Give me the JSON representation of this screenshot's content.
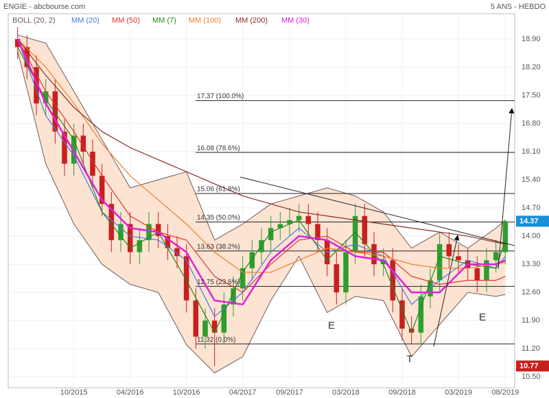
{
  "chart_data": {
    "type": "candlestick",
    "title": "ENGIE - abcbourse.com",
    "subtitle": "5 ANS - HEBDO",
    "xlim": [
      "2015-03",
      "2019-09"
    ],
    "xticks": [
      {
        "value": "2015-10",
        "label": "10/2015"
      },
      {
        "value": "2016-04",
        "label": "04/2016"
      },
      {
        "value": "2016-10",
        "label": "10/2016"
      },
      {
        "value": "2017-04",
        "label": "04/2017"
      },
      {
        "value": "2017-09",
        "label": "09/2017"
      },
      {
        "value": "2018-03",
        "label": "03/2018"
      },
      {
        "value": "2018-09",
        "label": "09/2018"
      },
      {
        "value": "2019-03",
        "label": "03/2019"
      },
      {
        "value": "2019-08",
        "label": "08/2019"
      }
    ],
    "ylim": [
      10.23,
      19.53
    ],
    "yticks": [
      {
        "value": 10.5,
        "label": "10.50"
      },
      {
        "value": 11.2,
        "label": "11.20"
      },
      {
        "value": 11.9,
        "label": "11.90"
      },
      {
        "value": 12.6,
        "label": "12.60"
      },
      {
        "value": 13.3,
        "label": "13.30"
      },
      {
        "value": 14.0,
        "label": "14.00"
      },
      {
        "value": 14.7,
        "label": "14.70"
      },
      {
        "value": 15.4,
        "label": "15.40"
      },
      {
        "value": 16.1,
        "label": "16.10"
      },
      {
        "value": 16.8,
        "label": "16.80"
      },
      {
        "value": 17.5,
        "label": "17.50"
      },
      {
        "value": 18.2,
        "label": "18.20"
      },
      {
        "value": 18.9,
        "label": "18.90"
      }
    ],
    "grid": true,
    "up_color": "#2e9e2e",
    "down_color": "#c8201e",
    "candles": {
      "x": [
        "2015-04",
        "2015-05",
        "2015-06",
        "2015-07",
        "2015-08",
        "2015-09",
        "2015-10",
        "2015-11",
        "2015-12",
        "2016-01",
        "2016-02",
        "2016-03",
        "2016-04",
        "2016-05",
        "2016-06",
        "2016-07",
        "2016-08",
        "2016-09",
        "2016-10",
        "2016-11",
        "2016-12",
        "2017-01",
        "2017-02",
        "2017-03",
        "2017-04",
        "2017-05",
        "2017-06",
        "2017-07",
        "2017-08",
        "2017-09",
        "2017-10",
        "2017-11",
        "2017-12",
        "2018-01",
        "2018-02",
        "2018-03",
        "2018-04",
        "2018-05",
        "2018-06",
        "2018-07",
        "2018-08",
        "2018-09",
        "2018-10",
        "2018-11",
        "2018-12",
        "2019-01",
        "2019-02",
        "2019-03",
        "2019-04",
        "2019-05",
        "2019-06",
        "2019-07",
        "2019-08"
      ],
      "open": [
        18.9,
        18.7,
        18.2,
        17.3,
        17.6,
        16.6,
        15.8,
        16.5,
        16.1,
        15.5,
        14.8,
        13.9,
        14.3,
        13.6,
        13.9,
        14.3,
        14.0,
        13.7,
        13.5,
        12.4,
        11.5,
        11.9,
        11.6,
        12.3,
        12.7,
        13.2,
        13.6,
        13.9,
        14.2,
        14.3,
        14.4,
        14.5,
        14.3,
        13.9,
        13.3,
        12.6,
        13.6,
        14.5,
        13.8,
        13.3,
        13.4,
        12.4,
        11.7,
        11.6,
        12.5,
        12.9,
        13.8,
        13.5,
        13.4,
        13.2,
        12.9,
        13.4,
        13.6
      ],
      "high": [
        19.2,
        19.0,
        18.5,
        17.9,
        17.9,
        16.9,
        16.8,
        16.8,
        16.4,
        15.8,
        15.1,
        14.6,
        14.6,
        14.2,
        14.6,
        14.6,
        14.3,
        14.0,
        13.8,
        12.7,
        12.2,
        12.2,
        12.6,
        13.0,
        13.5,
        13.9,
        14.2,
        14.5,
        14.6,
        14.7,
        14.8,
        14.8,
        14.6,
        14.2,
        13.6,
        13.9,
        14.8,
        14.8,
        14.1,
        13.7,
        13.7,
        12.7,
        12.0,
        12.8,
        13.2,
        14.1,
        14.1,
        13.8,
        13.7,
        13.5,
        13.7,
        13.9,
        14.4
      ],
      "low": [
        18.4,
        17.9,
        17.0,
        17.0,
        16.3,
        15.5,
        15.5,
        15.8,
        15.2,
        14.5,
        13.6,
        13.6,
        13.3,
        13.3,
        13.6,
        13.7,
        13.4,
        13.2,
        12.1,
        11.2,
        11.2,
        10.77,
        11.3,
        12.0,
        12.4,
        12.9,
        13.3,
        13.6,
        13.9,
        14.0,
        14.1,
        14.0,
        13.6,
        13.0,
        12.3,
        12.3,
        13.3,
        13.5,
        13.0,
        13.0,
        12.1,
        11.4,
        11.3,
        11.3,
        12.2,
        12.6,
        13.2,
        13.1,
        12.9,
        12.6,
        12.6,
        13.1,
        13.3
      ],
      "close": [
        18.7,
        18.2,
        17.3,
        17.6,
        16.6,
        15.8,
        16.5,
        16.1,
        15.5,
        14.8,
        13.9,
        14.3,
        13.6,
        13.9,
        14.3,
        14.0,
        13.7,
        13.5,
        12.4,
        11.5,
        11.9,
        11.6,
        12.3,
        12.7,
        13.2,
        13.6,
        13.9,
        14.2,
        14.3,
        14.4,
        14.5,
        14.3,
        13.9,
        13.3,
        12.6,
        13.6,
        14.5,
        13.8,
        13.3,
        13.4,
        12.4,
        11.7,
        11.6,
        12.5,
        12.9,
        13.8,
        13.5,
        13.4,
        13.2,
        12.9,
        13.4,
        13.6,
        14.37
      ]
    },
    "overlays": {
      "x": [
        "2015-04",
        "2015-07",
        "2015-10",
        "2016-01",
        "2016-04",
        "2016-07",
        "2016-10",
        "2017-01",
        "2017-04",
        "2017-07",
        "2017-10",
        "2018-01",
        "2018-04",
        "2018-07",
        "2018-10",
        "2019-01",
        "2019-04",
        "2019-07",
        "2019-08"
      ],
      "bands": {
        "name": "BOLL (20, 2)",
        "color": "#6e5a5a",
        "fill": "#fde3d2",
        "upper": [
          19.0,
          18.8,
          17.6,
          16.4,
          15.2,
          15.4,
          15.6,
          13.9,
          14.3,
          14.8,
          15.0,
          15.2,
          15.0,
          14.6,
          13.7,
          14.1,
          13.7,
          14.2,
          14.4
        ],
        "lower": [
          18.6,
          15.8,
          14.3,
          13.3,
          12.8,
          12.6,
          11.3,
          10.6,
          11.0,
          12.4,
          13.5,
          12.1,
          12.5,
          12.4,
          11.0,
          11.8,
          12.6,
          12.5,
          12.55
        ]
      },
      "series": [
        {
          "name": "MM (20)",
          "color": "#4a78e0",
          "values": [
            18.9,
            17.0,
            16.0,
            14.6,
            14.0,
            13.9,
            13.4,
            12.0,
            12.6,
            13.6,
            14.2,
            13.6,
            13.8,
            13.5,
            12.3,
            12.9,
            13.4,
            13.2,
            13.5
          ]
        },
        {
          "name": "MM (50)",
          "color": "#e0352d",
          "values": [
            18.9,
            17.6,
            16.6,
            15.5,
            14.5,
            14.1,
            13.9,
            13.0,
            12.6,
            13.3,
            13.9,
            14.0,
            13.6,
            13.6,
            13.0,
            12.8,
            12.9,
            12.9,
            13.0
          ]
        },
        {
          "name": "MM (7)",
          "color": "#1f8a1f",
          "values": [
            18.7,
            17.4,
            16.4,
            14.6,
            13.7,
            14.1,
            12.9,
            11.6,
            13.1,
            14.1,
            14.4,
            13.4,
            14.1,
            13.3,
            11.6,
            13.5,
            13.3,
            13.2,
            13.9
          ]
        },
        {
          "name": "MM (100)",
          "color": "#f07c28",
          "values": [
            18.9,
            18.2,
            17.3,
            16.3,
            15.5,
            14.9,
            14.3,
            13.6,
            13.1,
            13.1,
            13.4,
            13.7,
            13.6,
            13.5,
            13.3,
            13.2,
            13.2,
            13.3,
            13.35
          ]
        },
        {
          "name": "MM (200)",
          "color": "#8b2a2a",
          "values": [
            18.9,
            18.0,
            17.2,
            16.6,
            16.2,
            15.9,
            15.6,
            15.3,
            15.0,
            14.8,
            14.6,
            14.5,
            14.4,
            14.3,
            14.2,
            14.1,
            14.0,
            13.85,
            13.8
          ]
        },
        {
          "name": "MM (30)",
          "color": "#e020d8",
          "values": [
            18.9,
            17.3,
            16.1,
            14.9,
            14.2,
            14.1,
            13.6,
            12.4,
            12.3,
            13.4,
            14.0,
            13.9,
            13.5,
            13.4,
            12.6,
            12.6,
            13.3,
            13.3,
            13.4
          ]
        }
      ]
    },
    "levels": [
      {
        "value": 17.37,
        "label": "17.37  (100.0%)"
      },
      {
        "value": 16.08,
        "label": "16.08  (78.6%)"
      },
      {
        "value": 15.06,
        "label": "15.06  (61.8%)"
      },
      {
        "value": 14.35,
        "label": "14.35  (50.0%)"
      },
      {
        "value": 13.63,
        "label": "13.63  (38.2%)"
      },
      {
        "value": 12.75,
        "label": "12.75  (23.6%)"
      },
      {
        "value": 11.32,
        "label": "11.32  (0.0%)"
      }
    ],
    "price_tags": [
      {
        "value": 14.37,
        "color": "#1a8fd8"
      },
      {
        "value": 10.77,
        "color": "#c8201e"
      }
    ],
    "annotations": [
      "E",
      "T",
      "E"
    ]
  }
}
